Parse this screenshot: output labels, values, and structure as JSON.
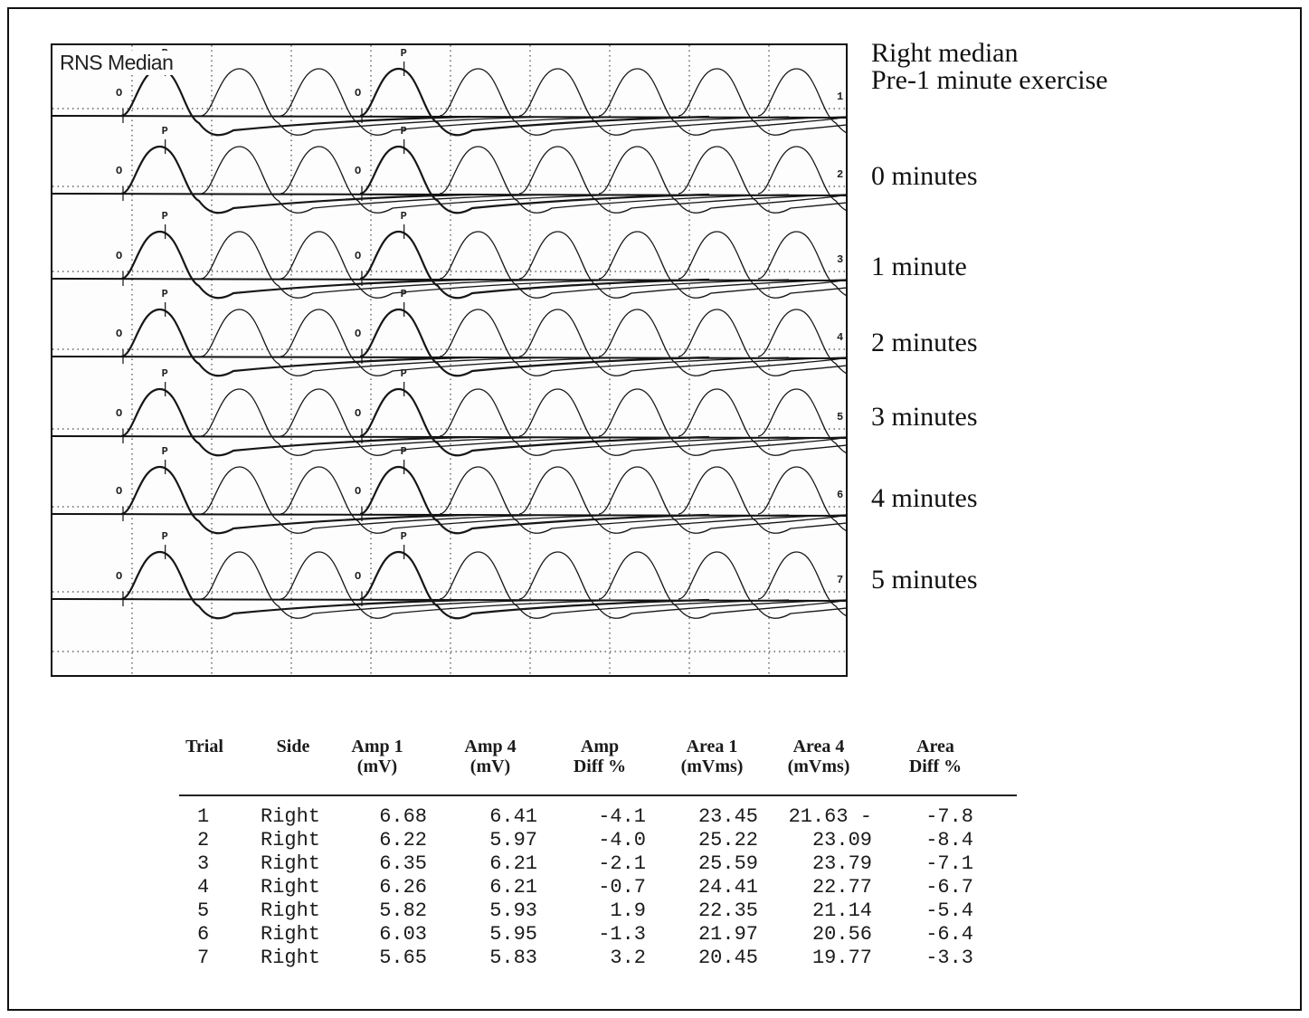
{
  "chart_data": {
    "type": "line",
    "title": "RNS Median",
    "traces": [
      {
        "number": "1",
        "label_lines": [
          "Right median",
          "Pre-1 minute exercise"
        ]
      },
      {
        "number": "2",
        "label_lines": [
          "0 minutes"
        ]
      },
      {
        "number": "3",
        "label_lines": [
          "1 minute"
        ]
      },
      {
        "number": "4",
        "label_lines": [
          "2 minutes"
        ]
      },
      {
        "number": "5",
        "label_lines": [
          "3 minutes"
        ]
      },
      {
        "number": "6",
        "label_lines": [
          "4 minutes"
        ]
      },
      {
        "number": "7",
        "label_lines": [
          "5 minutes"
        ]
      }
    ],
    "markers": [
      "O",
      "P"
    ],
    "grid": true
  },
  "table": {
    "headers": [
      [
        "Trial"
      ],
      [
        "Side"
      ],
      [
        "Amp 1",
        "(mV)"
      ],
      [
        "Amp 4",
        "(mV)"
      ],
      [
        "Amp",
        "Diff %"
      ],
      [
        "Area 1",
        "(mVms)"
      ],
      [
        "Area 4",
        "(mVms)"
      ],
      [
        "Area",
        "Diff %"
      ]
    ],
    "rows": [
      [
        "1",
        "Right",
        "6.68",
        "6.41",
        "-4.1",
        "23.45",
        "21.63 -",
        "-7.8"
      ],
      [
        "2",
        "Right",
        "6.22",
        "5.97",
        "-4.0",
        "25.22",
        "23.09",
        "-8.4"
      ],
      [
        "3",
        "Right",
        "6.35",
        "6.21",
        "-2.1",
        "25.59",
        "23.79",
        "-7.1"
      ],
      [
        "4",
        "Right",
        "6.26",
        "6.21",
        "-0.7",
        "24.41",
        "22.77",
        "-6.7"
      ],
      [
        "5",
        "Right",
        "5.82",
        "5.93",
        "1.9",
        "22.35",
        "21.14",
        "-5.4"
      ],
      [
        "6",
        "Right",
        "6.03",
        "5.95",
        "-1.3",
        "21.97",
        "20.56",
        "-6.4"
      ],
      [
        "7",
        "Right",
        "5.65",
        "5.83",
        "3.2",
        "20.45",
        "19.77",
        "-3.3"
      ]
    ]
  }
}
